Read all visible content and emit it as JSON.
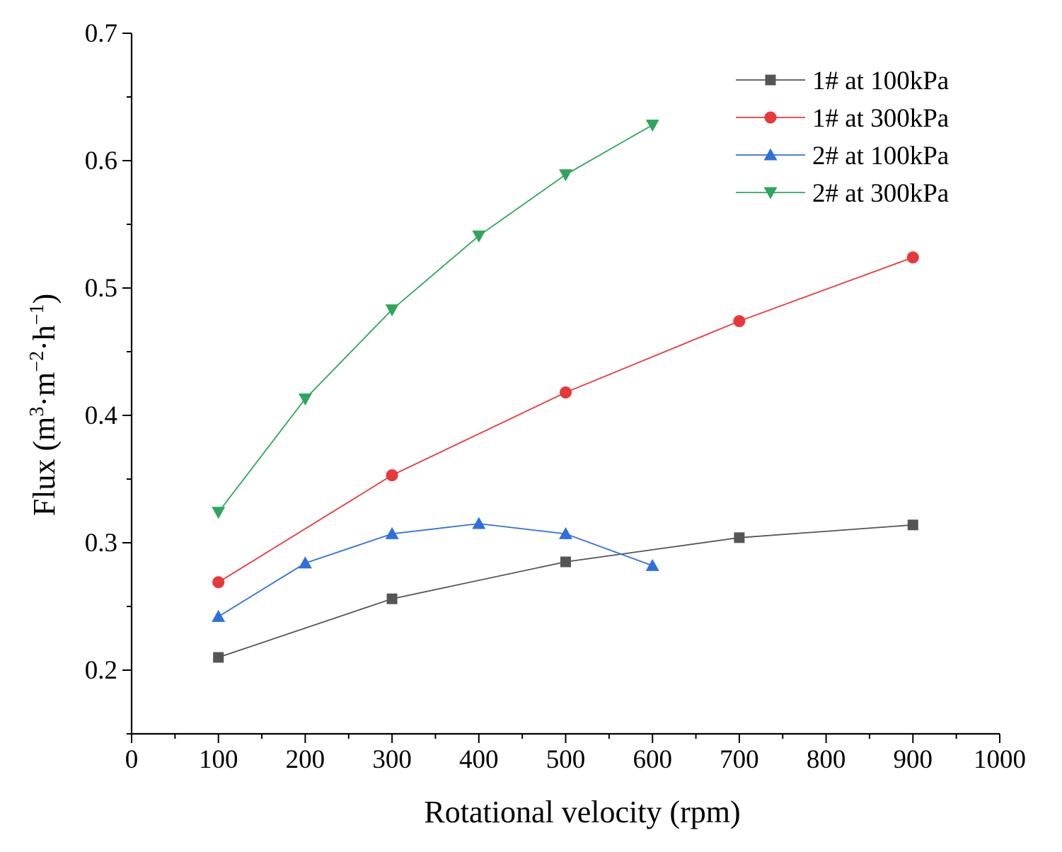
{
  "chart_data": {
    "type": "line",
    "title": "",
    "xlabel": "Rotational velocity (rpm)",
    "ylabel_parts": [
      "Flux (m",
      "3",
      "·m",
      "−2",
      "·h",
      "−1",
      ")"
    ],
    "xlim": [
      0,
      1000
    ],
    "ylim": [
      0.15,
      0.7
    ],
    "xticks": [
      0,
      100,
      200,
      300,
      400,
      500,
      600,
      700,
      800,
      900,
      1000
    ],
    "yticks": [
      0.2,
      0.3,
      0.4,
      0.5,
      0.6,
      0.7
    ],
    "xtick_labels": [
      "0",
      "100",
      "200",
      "300",
      "400",
      "500",
      "600",
      "700",
      "800",
      "900",
      "1000"
    ],
    "ytick_labels": [
      "0.2",
      "0.3",
      "0.4",
      "0.5",
      "0.6",
      "0.7"
    ],
    "legend_position": "top-right",
    "series": [
      {
        "name": "1# at 100kPa",
        "color": "#555555",
        "marker": "square",
        "x": [
          100,
          300,
          500,
          700,
          900
        ],
        "y": [
          0.21,
          0.256,
          0.285,
          0.304,
          0.314
        ]
      },
      {
        "name": "1# at 300kPa",
        "color": "#e8383b",
        "marker": "circle",
        "x": [
          100,
          300,
          500,
          700,
          900
        ],
        "y": [
          0.269,
          0.353,
          0.418,
          0.474,
          0.524
        ]
      },
      {
        "name": "2# at 100kPa",
        "color": "#2f6fdd",
        "marker": "triangle-up",
        "x": [
          100,
          200,
          300,
          400,
          500,
          600
        ],
        "y": [
          0.242,
          0.284,
          0.307,
          0.315,
          0.307,
          0.282
        ]
      },
      {
        "name": "2# at 300kPa",
        "color": "#2ea65b",
        "marker": "triangle-down",
        "x": [
          100,
          200,
          300,
          400,
          500,
          600
        ],
        "y": [
          0.324,
          0.413,
          0.483,
          0.541,
          0.589,
          0.628
        ]
      }
    ]
  }
}
